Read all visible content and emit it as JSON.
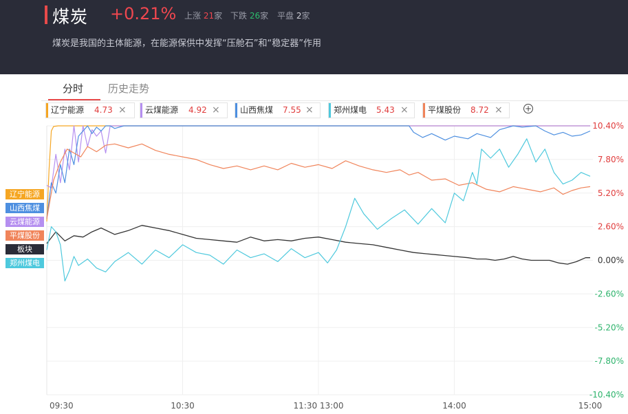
{
  "header": {
    "title": "煤炭",
    "change": "+0.21%",
    "up_label": "上涨",
    "up_count": "21",
    "up_unit": "家",
    "down_label": "下跌",
    "down_count": "26",
    "down_unit": "家",
    "flat_label": "平盘",
    "flat_count": "2",
    "flat_unit": "家",
    "description": "煤炭是我国的主体能源，在能源保供中发挥“压舱石”和“稳定器”作用"
  },
  "tabs": [
    {
      "label": "分时",
      "active": true
    },
    {
      "label": "历史走势",
      "active": false
    }
  ],
  "chips": [
    {
      "name": "辽宁能源",
      "value": "4.73",
      "color": "#f5a623"
    },
    {
      "name": "云煤能源",
      "value": "4.92",
      "color": "#b58ff0"
    },
    {
      "name": "山西焦煤",
      "value": "7.55",
      "color": "#4d8fe0"
    },
    {
      "name": "郑州煤电",
      "value": "5.43",
      "color": "#4ec9dd"
    },
    {
      "name": "平煤股份",
      "value": "8.72",
      "color": "#f0845a"
    }
  ],
  "close_symbol": "×",
  "add_symbol": "+",
  "legend_tags": [
    {
      "label": "辽宁能源",
      "color": "#f5a623"
    },
    {
      "label": "山西焦煤",
      "color": "#4d8fe0"
    },
    {
      "label": "云煤能源",
      "color": "#b58ff0"
    },
    {
      "label": "平煤股份",
      "color": "#f0845a"
    },
    {
      "label": "板块",
      "color": "#2a2c38"
    },
    {
      "label": "郑州煤电",
      "color": "#4ec9dd"
    }
  ],
  "chart_data": {
    "type": "line",
    "x_ticks": [
      "09:30",
      "10:30",
      "11:30 13:00",
      "14:00",
      "15:00"
    ],
    "y_ticks": [
      "10.40%",
      "7.80%",
      "5.20%",
      "2.60%",
      "0.00%",
      "-2.60%",
      "-5.20%",
      "-7.80%",
      "-10.40%"
    ],
    "ylim": [
      -10.4,
      10.4
    ],
    "x_unit": "minutes since 09:30 (0-240)",
    "grid": true,
    "series": [
      {
        "name": "辽宁能源",
        "color": "#f5a623",
        "x": [
          0,
          1,
          2,
          3,
          5,
          240
        ],
        "y": [
          3.0,
          7.0,
          10.0,
          10.35,
          10.4,
          10.4
        ]
      },
      {
        "name": "云煤能源",
        "color": "#b58ff0",
        "x": [
          0,
          2,
          4,
          6,
          8,
          10,
          12,
          14,
          16,
          18,
          20,
          22,
          24,
          26,
          28,
          32,
          240
        ],
        "y": [
          5.8,
          5.6,
          8.2,
          6.0,
          8.6,
          7.0,
          10.4,
          7.6,
          10.4,
          8.8,
          10.1,
          9.6,
          10.0,
          8.3,
          10.4,
          10.4,
          10.4
        ]
      },
      {
        "name": "山西焦煤",
        "color": "#4d8fe0",
        "x": [
          0,
          2,
          4,
          6,
          8,
          10,
          12,
          14,
          16,
          18,
          20,
          22,
          24,
          26,
          28,
          30,
          34,
          40,
          60,
          100,
          150,
          160,
          162,
          166,
          170,
          176,
          180,
          186,
          190,
          196,
          200,
          206,
          210,
          216,
          220,
          224,
          228,
          232,
          236,
          240
        ],
        "y": [
          3.2,
          6.0,
          5.2,
          7.4,
          6.0,
          8.6,
          7.4,
          9.6,
          10.0,
          10.4,
          9.8,
          10.3,
          10.0,
          10.4,
          10.4,
          10.2,
          10.4,
          10.4,
          10.4,
          10.4,
          10.4,
          10.4,
          9.9,
          9.5,
          9.8,
          9.3,
          9.6,
          9.4,
          9.8,
          9.5,
          10.1,
          10.4,
          10.3,
          10.4,
          10.0,
          9.7,
          9.9,
          9.6,
          9.7,
          10.0
        ]
      },
      {
        "name": "平煤股份",
        "color": "#f0845a",
        "x": [
          0,
          3,
          6,
          9,
          12,
          15,
          18,
          22,
          26,
          30,
          36,
          42,
          48,
          54,
          60,
          66,
          72,
          78,
          84,
          90,
          96,
          102,
          108,
          114,
          120,
          126,
          132,
          138,
          144,
          150,
          156,
          160,
          164,
          170,
          176,
          182,
          188,
          194,
          200,
          206,
          212,
          218,
          224,
          228,
          232,
          236,
          240
        ],
        "y": [
          3.2,
          6.2,
          7.6,
          8.6,
          8.3,
          8.0,
          8.8,
          8.4,
          8.9,
          9.0,
          8.7,
          9.0,
          8.5,
          8.2,
          8.0,
          7.8,
          7.4,
          7.1,
          7.3,
          7.0,
          7.3,
          7.0,
          7.5,
          7.2,
          7.4,
          7.1,
          7.7,
          7.3,
          7.0,
          6.8,
          7.0,
          6.6,
          6.8,
          6.2,
          6.3,
          5.8,
          6.0,
          5.5,
          5.3,
          5.7,
          5.5,
          5.3,
          5.6,
          5.1,
          5.4,
          5.6,
          5.7
        ]
      },
      {
        "name": "板块",
        "color": "#333333",
        "x": [
          0,
          4,
          8,
          12,
          16,
          20,
          24,
          30,
          36,
          42,
          48,
          54,
          60,
          66,
          72,
          78,
          84,
          90,
          96,
          102,
          108,
          114,
          120,
          126,
          132,
          138,
          144,
          150,
          156,
          162,
          168,
          174,
          180,
          186,
          190,
          194,
          198,
          202,
          206,
          210,
          214,
          218,
          222,
          226,
          230,
          234,
          238,
          240
        ],
        "y": [
          1.3,
          2.2,
          1.5,
          1.9,
          1.8,
          2.2,
          2.5,
          2.0,
          2.3,
          2.7,
          2.5,
          2.3,
          2.0,
          1.7,
          1.6,
          1.5,
          1.4,
          1.8,
          1.5,
          1.6,
          1.5,
          1.7,
          1.8,
          1.6,
          1.4,
          1.3,
          1.2,
          1.0,
          0.8,
          0.6,
          0.5,
          0.4,
          0.3,
          0.2,
          0.1,
          0.1,
          0.0,
          0.1,
          0.3,
          0.1,
          0.0,
          0.0,
          0.0,
          -0.2,
          -0.3,
          -0.1,
          0.2,
          0.2
        ]
      },
      {
        "name": "郑州煤电",
        "color": "#4ec9dd",
        "x": [
          0,
          2,
          4,
          6,
          8,
          10,
          12,
          14,
          18,
          22,
          26,
          30,
          36,
          42,
          48,
          54,
          60,
          66,
          72,
          78,
          84,
          90,
          96,
          102,
          108,
          114,
          120,
          124,
          128,
          132,
          136,
          140,
          146,
          152,
          158,
          164,
          170,
          176,
          180,
          184,
          188,
          190,
          192,
          196,
          200,
          204,
          208,
          212,
          216,
          220,
          224,
          228,
          232,
          236,
          240
        ],
        "y": [
          0.8,
          2.6,
          2.2,
          1.2,
          -1.6,
          -0.8,
          0.3,
          -0.4,
          0.1,
          -0.6,
          -0.9,
          -0.1,
          0.6,
          -0.3,
          0.8,
          0.2,
          1.2,
          0.6,
          0.4,
          -0.3,
          0.8,
          0.2,
          0.5,
          -0.1,
          0.9,
          0.2,
          0.6,
          -0.2,
          0.8,
          2.6,
          4.8,
          3.6,
          2.4,
          3.2,
          3.9,
          2.8,
          4.0,
          2.9,
          5.2,
          4.6,
          6.8,
          5.9,
          8.6,
          7.9,
          8.6,
          7.2,
          8.2,
          9.4,
          7.6,
          8.6,
          6.8,
          5.9,
          6.2,
          6.8,
          6.5
        ]
      }
    ]
  }
}
